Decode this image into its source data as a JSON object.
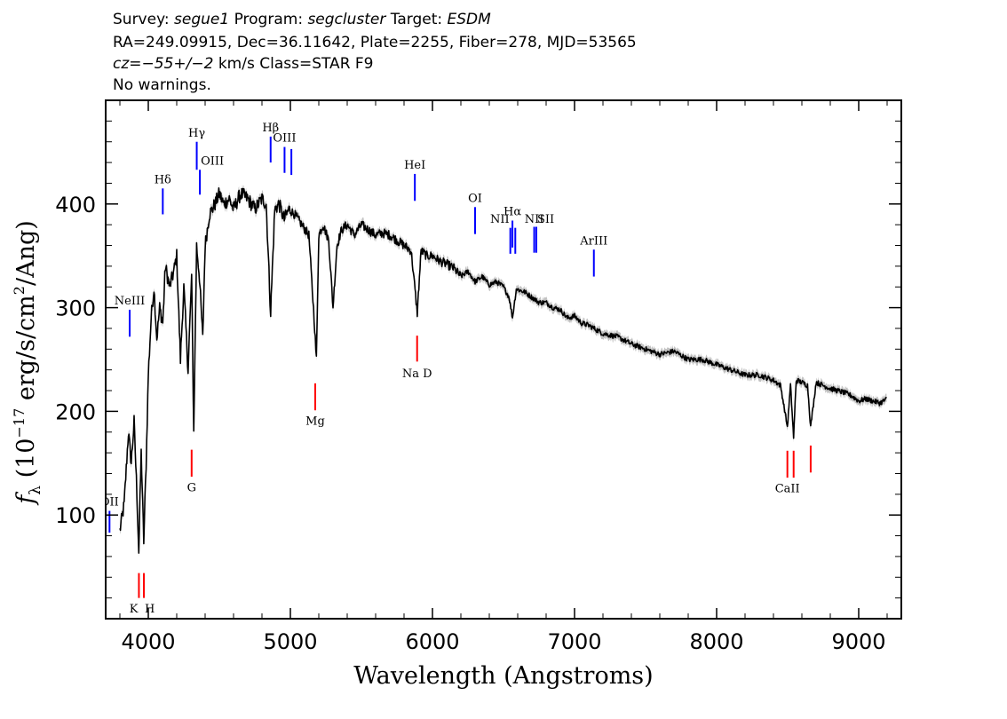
{
  "header": {
    "line1": {
      "survey_label": "Survey: ",
      "survey": "segue1",
      "program_label": " Program: ",
      "program": "segcluster",
      "target_label": " Target: ",
      "target": "ESDM"
    },
    "line2": "RA=249.09915, Dec=36.11642, Plate=2255, Fiber=278, MJD=53565",
    "line3": {
      "cz_label": "cz",
      "cz_text": "=−55+/−2",
      "cz_units": " km/s Class=STAR F9"
    },
    "line4": "No warnings."
  },
  "chart_data": {
    "type": "line",
    "xlabel": "Wavelength (Angstroms)",
    "ylabel": "f_λ (10^-17 erg/s/cm^2/Ang)",
    "ylabel_parts": {
      "f": "f",
      "sub": "λ",
      "pre": " (10",
      "exp1": "−17",
      "mid": " erg/s/cm",
      "exp2": "2",
      "post": "/Ang)"
    },
    "xlim": [
      3700,
      9300
    ],
    "ylim": [
      0,
      500
    ],
    "x_ticks": [
      4000,
      5000,
      6000,
      7000,
      8000,
      9000
    ],
    "x_tick_labels": [
      "4000",
      "5000",
      "6000",
      "7000",
      "8000",
      "9000"
    ],
    "y_ticks": [
      100,
      200,
      300,
      400
    ],
    "y_tick_labels": [
      "100",
      "200",
      "300",
      "400"
    ],
    "grid": false,
    "colors": {
      "spectrum": "#000000",
      "error": "#b3b3b3",
      "emission": "#0000ff",
      "absorption": "#ff0000"
    },
    "spectrum": {
      "name": "",
      "x": [
        3800,
        3830,
        3860,
        3880,
        3900,
        3920,
        3933,
        3950,
        3968,
        3985,
        4000,
        4020,
        4040,
        4060,
        4080,
        4102,
        4120,
        4150,
        4180,
        4200,
        4226,
        4250,
        4280,
        4305,
        4320,
        4340,
        4360,
        4383,
        4400,
        4430,
        4470,
        4500,
        4530,
        4570,
        4600,
        4650,
        4700,
        4750,
        4800,
        4830,
        4861,
        4890,
        4920,
        4957,
        4990,
        5030,
        5080,
        5130,
        5167,
        5183,
        5200,
        5230,
        5270,
        5300,
        5328,
        5360,
        5400,
        5450,
        5500,
        5550,
        5600,
        5650,
        5700,
        5750,
        5800,
        5850,
        5893,
        5920,
        5960,
        6000,
        6050,
        6100,
        6150,
        6200,
        6250,
        6300,
        6350,
        6400,
        6450,
        6500,
        6540,
        6563,
        6590,
        6650,
        6700,
        6750,
        6800,
        6850,
        6900,
        6950,
        7000,
        7050,
        7100,
        7200,
        7300,
        7400,
        7500,
        7600,
        7700,
        7800,
        7900,
        8000,
        8100,
        8200,
        8300,
        8400,
        8450,
        8498,
        8520,
        8542,
        8560,
        8600,
        8640,
        8662,
        8700,
        8750,
        8800,
        8850,
        8900,
        8950,
        9000,
        9050,
        9100,
        9150,
        9200
      ],
      "y": [
        85,
        110,
        180,
        150,
        190,
        120,
        65,
        160,
        75,
        150,
        235,
        290,
        320,
        270,
        300,
        285,
        340,
        320,
        335,
        350,
        250,
        320,
        240,
        330,
        180,
        360,
        330,
        270,
        360,
        390,
        400,
        410,
        400,
        405,
        395,
        410,
        405,
        395,
        405,
        400,
        295,
        395,
        400,
        385,
        395,
        390,
        380,
        370,
        290,
        250,
        370,
        380,
        365,
        300,
        360,
        375,
        380,
        370,
        380,
        375,
        370,
        372,
        370,
        365,
        360,
        355,
        295,
        355,
        350,
        350,
        345,
        342,
        338,
        330,
        335,
        325,
        330,
        322,
        325,
        320,
        310,
        290,
        318,
        315,
        310,
        305,
        305,
        300,
        298,
        290,
        292,
        285,
        283,
        275,
        272,
        265,
        260,
        255,
        258,
        250,
        250,
        245,
        240,
        235,
        235,
        230,
        225,
        185,
        225,
        175,
        230,
        228,
        225,
        185,
        228,
        225,
        222,
        220,
        218,
        215,
        210,
        212,
        210,
        208,
        212
      ]
    },
    "lines": [
      {
        "label": "OII",
        "x": 3727,
        "y0": 83,
        "y1": 104,
        "label_y": 109,
        "color": "blue",
        "anchor": "middle"
      },
      {
        "label": "NeIII",
        "x": 3869,
        "y0": 272,
        "y1": 298,
        "label_y": 303,
        "color": "blue",
        "anchor": "middle"
      },
      {
        "label": "K",
        "x": 3934,
        "y0": 20,
        "y1": 44,
        "label_y": 6,
        "color": "red",
        "anchor": "end"
      },
      {
        "label": "H",
        "x": 3969,
        "y0": 20,
        "y1": 44,
        "label_y": 6,
        "color": "red",
        "anchor": "start"
      },
      {
        "label": "Hδ",
        "x": 4102,
        "y0": 390,
        "y1": 415,
        "label_y": 420,
        "color": "blue",
        "anchor": "middle"
      },
      {
        "label": "G",
        "x": 4305,
        "y0": 137,
        "y1": 163,
        "label_y": 123,
        "color": "red",
        "anchor": "middle"
      },
      {
        "label": "Hγ",
        "x": 4341,
        "y0": 433,
        "y1": 460,
        "label_y": 465,
        "color": "blue",
        "anchor": "middle"
      },
      {
        "label": "OIII",
        "x": 4363,
        "y0": 409,
        "y1": 433,
        "label_y": 438,
        "color": "blue",
        "anchor": "start"
      },
      {
        "label": "Hβ",
        "x": 4861,
        "y0": 440,
        "y1": 465,
        "label_y": 470,
        "color": "blue",
        "anchor": "middle"
      },
      {
        "label": "OIII",
        "x": 4959,
        "y0": 430,
        "y1": 455,
        "label_y": 460,
        "color": "blue",
        "anchor": "middle"
      },
      {
        "label": "",
        "x": 5007,
        "y0": 428,
        "y1": 453,
        "label_y": 0,
        "color": "blue",
        "anchor": "middle"
      },
      {
        "label": "Mg",
        "x": 5175,
        "y0": 201,
        "y1": 227,
        "label_y": 187,
        "color": "red",
        "anchor": "middle"
      },
      {
        "label": "HeI",
        "x": 5876,
        "y0": 403,
        "y1": 429,
        "label_y": 434,
        "color": "blue",
        "anchor": "middle"
      },
      {
        "label": "Na D",
        "x": 5892,
        "y0": 248,
        "y1": 273,
        "label_y": 233,
        "color": "red",
        "anchor": "middle"
      },
      {
        "label": "OI",
        "x": 6300,
        "y0": 371,
        "y1": 397,
        "label_y": 402,
        "color": "blue",
        "anchor": "middle"
      },
      {
        "label": "NII",
        "x": 6548,
        "y0": 352,
        "y1": 377,
        "label_y": 382,
        "color": "blue",
        "anchor": "end"
      },
      {
        "label": "Hα",
        "x": 6563,
        "y0": 358,
        "y1": 384,
        "label_y": 389,
        "color": "blue",
        "anchor": "middle"
      },
      {
        "label": "",
        "x": 6583,
        "y0": 352,
        "y1": 377,
        "label_y": 0,
        "color": "blue",
        "anchor": "middle"
      },
      {
        "label": "NII",
        "x": 6716,
        "y0": 353,
        "y1": 378,
        "label_y": 382,
        "color": "blue",
        "anchor": "middle"
      },
      {
        "label": "SII",
        "x": 6731,
        "y0": 353,
        "y1": 378,
        "label_y": 382,
        "color": "blue",
        "anchor": "start"
      },
      {
        "label": "ArIII",
        "x": 7136,
        "y0": 330,
        "y1": 356,
        "label_y": 361,
        "color": "blue",
        "anchor": "middle"
      },
      {
        "label": "CaII",
        "x": 8498,
        "y0": 136,
        "y1": 162,
        "label_y": 122,
        "color": "red",
        "anchor": "middle"
      },
      {
        "label": "",
        "x": 8542,
        "y0": 136,
        "y1": 162,
        "label_y": 0,
        "color": "red",
        "anchor": "middle"
      },
      {
        "label": "",
        "x": 8662,
        "y0": 141,
        "y1": 167,
        "label_y": 0,
        "color": "red",
        "anchor": "middle"
      }
    ]
  }
}
